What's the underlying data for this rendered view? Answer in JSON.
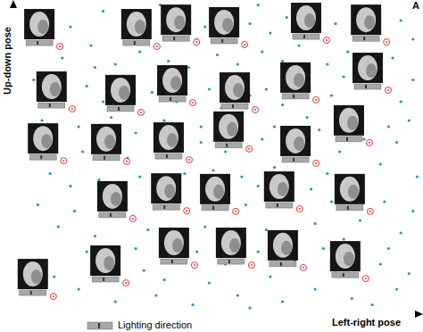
{
  "chart_data": {
    "type": "scatter",
    "title": "A",
    "x_label": "Left-right pose",
    "y_label": "Up-down pose",
    "annotations": [
      "Lighting direction"
    ],
    "color": "#2a8fbd",
    "tick_labels": false,
    "xlim": [
      0,
      100
    ],
    "ylim": [
      0,
      100
    ],
    "xticks": [],
    "yticks": [],
    "x": [
      8,
      14,
      22,
      28,
      33,
      40,
      47,
      52,
      58,
      63,
      67,
      72,
      79,
      84,
      88,
      95,
      12,
      19,
      25,
      31,
      38,
      43,
      50,
      55,
      61,
      66,
      70,
      77,
      82,
      86,
      93,
      98,
      36,
      60,
      45,
      20,
      5,
      10,
      18,
      22,
      27,
      34,
      37,
      41,
      48,
      51,
      55,
      62,
      64,
      68,
      72,
      78,
      81,
      85,
      89,
      95,
      98,
      7,
      16,
      24,
      30,
      46,
      53,
      58,
      75,
      83,
      92,
      97,
      40,
      66,
      4,
      9,
      17,
      21,
      25,
      31,
      35,
      38,
      46,
      49,
      52,
      56,
      61,
      64,
      67,
      71,
      77,
      80,
      83,
      90,
      94,
      99,
      14,
      28,
      42,
      60,
      86,
      73,
      6,
      11,
      15,
      20,
      24,
      33,
      36,
      39,
      47,
      50,
      53,
      57,
      62,
      65,
      68,
      74,
      78,
      81,
      85,
      91,
      95,
      98,
      18,
      30,
      45,
      60,
      76,
      92,
      4,
      10,
      16,
      21,
      25,
      32,
      35,
      40,
      44,
      48,
      52,
      55,
      63,
      66,
      69,
      74,
      79,
      83,
      90,
      94,
      97,
      37,
      58,
      88
    ],
    "y": [
      95,
      92,
      97,
      90,
      94,
      96,
      92,
      97,
      93,
      90,
      95,
      98,
      93,
      96,
      91,
      94,
      82,
      86,
      80,
      84,
      81,
      79,
      83,
      80,
      84,
      81,
      86,
      80,
      84,
      79,
      82,
      88,
      99,
      99,
      88,
      79,
      75,
      70,
      73,
      68,
      76,
      71,
      62,
      75,
      72,
      66,
      77,
      72,
      60,
      75,
      63,
      70,
      76,
      65,
      77,
      68,
      75,
      62,
      60,
      63,
      58,
      60,
      58,
      70,
      59,
      61,
      60,
      62,
      68,
      67,
      55,
      45,
      52,
      43,
      56,
      44,
      53,
      41,
      55,
      46,
      52,
      44,
      56,
      47,
      42,
      54,
      45,
      52,
      41,
      48,
      55,
      44,
      41,
      50,
      45,
      41,
      56,
      40,
      35,
      28,
      33,
      25,
      37,
      27,
      36,
      22,
      28,
      37,
      24,
      35,
      27,
      37,
      22,
      29,
      36,
      24,
      30,
      36,
      26,
      33,
      20,
      21,
      20,
      20,
      21,
      21,
      15,
      12,
      8,
      16,
      4,
      14,
      6,
      17,
      3,
      10,
      16,
      6,
      12,
      4,
      17,
      8,
      14,
      5,
      16,
      8,
      13,
      11,
      2,
      3
    ],
    "highlighted": {
      "x": [
        11.4,
        35.2,
        44.9,
        56.7,
        76.8,
        91.5,
        14.4,
        31.3,
        44.0,
        59.3,
        74.2,
        91.9,
        12.3,
        27.8,
        43.1,
        57.8,
        74.2,
        87.3,
        29.3,
        42.5,
        54.5,
        70.2,
        87.5,
        44.4,
        58.4,
        71.1,
        86.4,
        27.6,
        9.8
      ],
      "y": [
        85.7,
        85.7,
        87.1,
        86.3,
        87.7,
        87.1,
        65.7,
        64.6,
        67.7,
        65.4,
        68.6,
        71.7,
        49.1,
        48.9,
        49.4,
        52.9,
        48.3,
        54.9,
        30.6,
        33.1,
        32.9,
        33.7,
        32.9,
        15.7,
        15.7,
        14.9,
        11.4,
        10.0,
        5.7
      ]
    }
  }
}
